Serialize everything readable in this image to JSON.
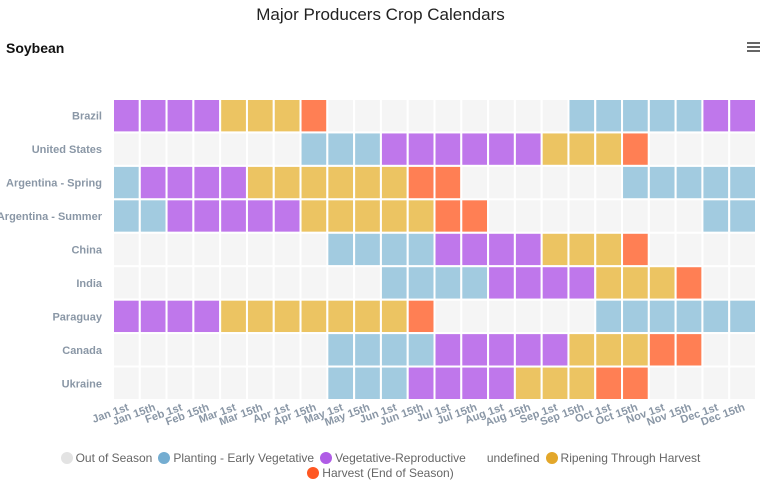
{
  "chart_title": "Major Producers Crop Calendars",
  "chart_subtitle": "Soybean",
  "menu_icon": "hamburger-menu-icon",
  "chart_data": {
    "type": "heatmap",
    "title": "Major Producers Crop Calendars",
    "subtitle": "Soybean",
    "x_labels": [
      "Jan 1st",
      "Jan 15th",
      "Feb 1st",
      "Feb 15th",
      "Mar 1st",
      "Mar 15th",
      "Apr 1st",
      "Apr 15th",
      "May 1st",
      "May 15th",
      "Jun 1st",
      "Jun 15th",
      "Jul 1st",
      "Jul 15th",
      "Aug 1st",
      "Aug 15th",
      "Sep 1st",
      "Sep 15th",
      "Oct 1st",
      "Oct 15th",
      "Nov 1st",
      "Nov 15th",
      "Dec 1st",
      "Dec 15th"
    ],
    "y_labels": [
      "Brazil",
      "United States",
      "Argentina - Spring",
      "Argentina - Summer",
      "China",
      "India",
      "Paraguay",
      "Canada",
      "Ukraine"
    ],
    "categories": [
      {
        "id": 0,
        "name": "Out of Season",
        "color": "#f5f5f5",
        "legend_color": "#e3e3e3"
      },
      {
        "id": 1,
        "name": "Planting - Early Vegetative",
        "color": "#a2cbe0",
        "legend_color": "#74add1"
      },
      {
        "id": 2,
        "name": "Vegetative-Reproductive",
        "color": "#bf77eb",
        "legend_color": "#b05ce6"
      },
      {
        "id": 3,
        "name": "undefined",
        "color": "",
        "legend_color": ""
      },
      {
        "id": 4,
        "name": "Ripening Through Harvest",
        "color": "#ecc462",
        "legend_color": "#e3a72a"
      },
      {
        "id": 5,
        "name": "Harvest (End of Season)",
        "color": "#ff7f54",
        "legend_color": "#ff5722"
      }
    ],
    "rows": [
      [
        2,
        2,
        2,
        2,
        4,
        4,
        4,
        5,
        0,
        0,
        0,
        0,
        0,
        0,
        0,
        0,
        0,
        1,
        1,
        1,
        1,
        1,
        2,
        2
      ],
      [
        0,
        0,
        0,
        0,
        0,
        0,
        0,
        1,
        1,
        1,
        2,
        2,
        2,
        2,
        2,
        2,
        4,
        4,
        4,
        5,
        0,
        0,
        0,
        0
      ],
      [
        1,
        2,
        2,
        2,
        2,
        4,
        4,
        4,
        4,
        4,
        4,
        5,
        5,
        0,
        0,
        0,
        0,
        0,
        0,
        1,
        1,
        1,
        1,
        1
      ],
      [
        1,
        1,
        2,
        2,
        2,
        2,
        2,
        4,
        4,
        4,
        4,
        4,
        5,
        5,
        0,
        0,
        0,
        0,
        0,
        0,
        0,
        0,
        1,
        1
      ],
      [
        0,
        0,
        0,
        0,
        0,
        0,
        0,
        0,
        1,
        1,
        1,
        1,
        2,
        2,
        2,
        2,
        4,
        4,
        4,
        5,
        0,
        0,
        0,
        0
      ],
      [
        0,
        0,
        0,
        0,
        0,
        0,
        0,
        0,
        0,
        0,
        1,
        1,
        1,
        1,
        2,
        2,
        2,
        2,
        4,
        4,
        4,
        5,
        0,
        0
      ],
      [
        2,
        2,
        2,
        2,
        4,
        4,
        4,
        4,
        4,
        4,
        4,
        5,
        0,
        0,
        0,
        0,
        0,
        0,
        1,
        1,
        1,
        1,
        1,
        1
      ],
      [
        0,
        0,
        0,
        0,
        0,
        0,
        0,
        0,
        1,
        1,
        1,
        1,
        2,
        2,
        2,
        2,
        2,
        4,
        4,
        4,
        5,
        5,
        0,
        0
      ],
      [
        0,
        0,
        0,
        0,
        0,
        0,
        0,
        0,
        1,
        1,
        1,
        2,
        2,
        2,
        2,
        4,
        4,
        4,
        5,
        5,
        0,
        0,
        0,
        0
      ]
    ]
  }
}
